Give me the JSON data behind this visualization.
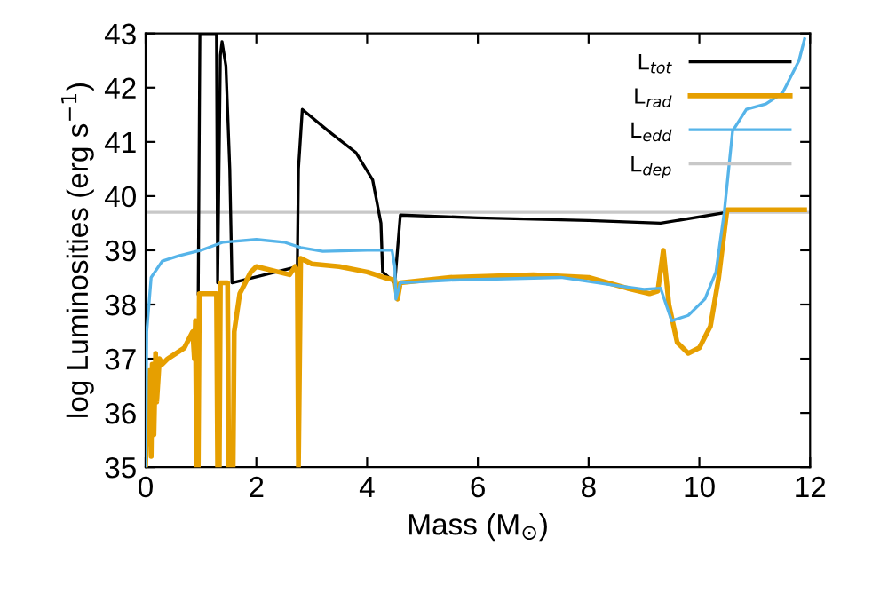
{
  "chart_data": {
    "type": "line",
    "xlabel": "Mass (M$_{⊙}$)",
    "ylabel": "log Luminosities (erg s$^{−1}$)",
    "xlim": [
      0,
      12
    ],
    "ylim": [
      35,
      43
    ],
    "xticks": [
      0,
      2,
      4,
      6,
      8,
      10,
      12
    ],
    "yticks": [
      35,
      36,
      37,
      38,
      39,
      40,
      41,
      42,
      43
    ],
    "grid": false,
    "legend": "top right",
    "marker": "none",
    "line_style": "solid",
    "series": [
      {
        "name": "L$_{tot}$",
        "color": "#000000",
        "x": [
          0.95,
          0.98,
          1.2,
          1.28,
          1.3,
          1.35,
          1.38,
          1.45,
          1.52,
          1.56,
          2.74,
          2.76,
          2.83,
          3.3,
          3.8,
          4.1,
          4.25,
          4.28,
          4.5,
          4.6,
          6,
          8,
          9.3,
          10.5
        ],
        "values": [
          38.2,
          43,
          43,
          43,
          38.4,
          42.6,
          42.85,
          42.4,
          40.5,
          38.4,
          38.7,
          40.5,
          41.6,
          41.2,
          40.8,
          40.3,
          39.5,
          38.6,
          38.4,
          39.65,
          39.6,
          39.55,
          39.5,
          39.7
        ]
      },
      {
        "name": "L$_{rad}$",
        "color": "#e69f00",
        "x": [
          0,
          0.02,
          0.05,
          0.08,
          0.1,
          0.12,
          0.15,
          0.18,
          0.2,
          0.25,
          0.3,
          0.4,
          0.7,
          0.85,
          0.88,
          0.9,
          0.92,
          0.95,
          0.97,
          1.28,
          1.3,
          1.33,
          1.35,
          1.48,
          1.5,
          1.58,
          1.6,
          1.7,
          1.9,
          2.0,
          2.4,
          2.6,
          2.7,
          2.74,
          2.76,
          2.8,
          3.0,
          3.5,
          4.0,
          4.3,
          4.5,
          4.55,
          4.6,
          5.5,
          7,
          8,
          8.7,
          9.1,
          9.25,
          9.35,
          9.45,
          9.6,
          9.8,
          10.0,
          10.2,
          10.35,
          10.5,
          11.9
        ],
        "values": [
          35.0,
          36.0,
          35.5,
          36.8,
          35.2,
          36.9,
          35.6,
          37.1,
          36.2,
          37.0,
          36.9,
          37.0,
          37.2,
          37.5,
          37.0,
          37.7,
          35.0,
          35.0,
          38.2,
          38.2,
          35.0,
          35.0,
          38.4,
          38.4,
          35.0,
          35.0,
          37.5,
          38.2,
          38.6,
          38.7,
          38.6,
          38.55,
          38.7,
          38.6,
          35.0,
          38.85,
          38.75,
          38.7,
          38.6,
          38.5,
          38.45,
          38.1,
          38.4,
          38.5,
          38.55,
          38.5,
          38.3,
          38.2,
          38.25,
          39.0,
          38.0,
          37.3,
          37.1,
          37.2,
          37.6,
          38.5,
          39.75,
          39.75
        ]
      },
      {
        "name": "L$_{edd}$",
        "color": "#56b4e9",
        "x": [
          0,
          0.02,
          0.1,
          0.3,
          0.6,
          1.0,
          1.4,
          2.0,
          2.5,
          2.8,
          3.2,
          4.0,
          4.45,
          4.5,
          4.52,
          4.6,
          5.5,
          7.5,
          8.5,
          9.0,
          9.3,
          9.5,
          9.8,
          10.1,
          10.3,
          10.45,
          10.6,
          10.85,
          11.2,
          11.5,
          11.8,
          11.9
        ],
        "values": [
          35.0,
          37.5,
          38.5,
          38.8,
          38.9,
          39.0,
          39.15,
          39.2,
          39.15,
          39.05,
          38.98,
          39.0,
          39.0,
          38.7,
          38.1,
          38.4,
          38.45,
          38.5,
          38.35,
          38.28,
          38.3,
          37.7,
          37.8,
          38.1,
          38.6,
          39.7,
          41.2,
          41.6,
          41.7,
          41.9,
          42.5,
          42.9
        ]
      },
      {
        "name": "L$_{dep}$",
        "color": "#c8c8c8",
        "x": [
          0,
          12
        ],
        "values": [
          39.7,
          39.7
        ]
      }
    ]
  }
}
